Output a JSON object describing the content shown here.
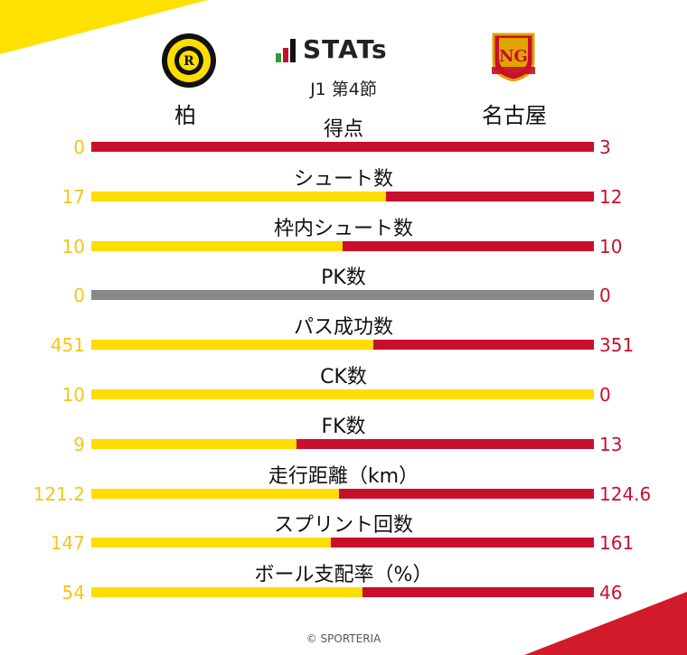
{
  "header": {
    "logo_text": "STATs",
    "matchday": "J1 第4節",
    "home_team": "柏",
    "away_team": "名古屋",
    "home_emblem_text": "KASHIWA REYSOL",
    "away_emblem_text": "NAGOYA GRAMPUS EIGHT"
  },
  "colors": {
    "home": "#FFDD00",
    "away": "#C8102E",
    "neutral": "#888888"
  },
  "stats": [
    {
      "label": "得点",
      "home": "0",
      "away": "3",
      "home_share": 0.0
    },
    {
      "label": "シュート数",
      "home": "17",
      "away": "12",
      "home_share": 0.586
    },
    {
      "label": "枠内シュート数",
      "home": "10",
      "away": "10",
      "home_share": 0.5
    },
    {
      "label": "PK数",
      "home": "0",
      "away": "0",
      "home_share": null
    },
    {
      "label": "パス成功数",
      "home": "451",
      "away": "351",
      "home_share": 0.562
    },
    {
      "label": "CK数",
      "home": "10",
      "away": "0",
      "home_share": 1.0
    },
    {
      "label": "FK数",
      "home": "9",
      "away": "13",
      "home_share": 0.409
    },
    {
      "label": "走行距離（km）",
      "home": "121.2",
      "away": "124.6",
      "home_share": 0.493
    },
    {
      "label": "スプリント回数",
      "home": "147",
      "away": "161",
      "home_share": 0.477
    },
    {
      "label": "ボール支配率（%）",
      "home": "54",
      "away": "46",
      "home_share": 0.54
    }
  ],
  "footer": {
    "copyright": "© SPORTERIA"
  }
}
